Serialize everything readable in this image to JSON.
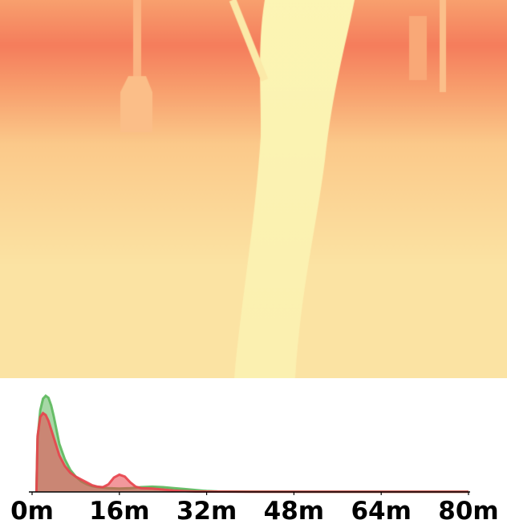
{
  "depth_map": {
    "colormap": [
      "#f57d5c",
      "#f8a06e",
      "#fbc98a",
      "#fbe3a3",
      "#fcf5b4"
    ],
    "colormap_note_colors": {
      "near": "#fcf5b4",
      "far": "#f57d5c"
    }
  },
  "chart_data": {
    "type": "area",
    "x_unit": "m",
    "xlim": [
      0,
      80
    ],
    "ylim": [
      0,
      1.0
    ],
    "x_ticks": [
      0,
      16,
      32,
      48,
      64,
      80
    ],
    "x_tick_labels": [
      "0m",
      "16m",
      "32m",
      "48m",
      "64m",
      "80m"
    ],
    "grid": false,
    "legend": "none",
    "series": [
      {
        "color": "#5cb85c",
        "x": [
          0.8,
          1.0,
          1.5,
          2.0,
          2.5,
          3.0,
          3.5,
          4.0,
          4.5,
          5.0,
          6.0,
          7.0,
          8.0,
          9.0,
          10.0,
          11.0,
          12.0,
          14.0,
          16.0,
          18.0,
          20.0,
          22.0,
          24.0,
          26.0,
          28.0,
          30.0,
          32.0,
          34.0,
          40.0,
          50.0,
          60.0,
          70.0,
          80.0
        ],
        "values": [
          0.0,
          0.55,
          0.85,
          0.97,
          1.0,
          0.98,
          0.9,
          0.78,
          0.64,
          0.5,
          0.34,
          0.23,
          0.16,
          0.11,
          0.08,
          0.06,
          0.05,
          0.04,
          0.035,
          0.04,
          0.05,
          0.055,
          0.05,
          0.04,
          0.03,
          0.02,
          0.01,
          0.005,
          0.003,
          0.002,
          0.002,
          0.002,
          0.002
        ]
      },
      {
        "color": "#e8434b",
        "x": [
          0.8,
          1.0,
          1.5,
          2.0,
          2.5,
          3.0,
          3.5,
          4.0,
          4.5,
          5.0,
          6.0,
          7.0,
          8.0,
          9.0,
          10.0,
          11.0,
          12.0,
          13.0,
          14.0,
          15.0,
          16.0,
          17.0,
          18.0,
          19.0,
          20.0,
          22.0,
          24.0,
          26.0,
          28.0,
          30.0,
          40.0,
          50.0,
          60.0,
          70.0,
          80.0
        ],
        "values": [
          0.0,
          0.58,
          0.78,
          0.82,
          0.8,
          0.74,
          0.65,
          0.56,
          0.47,
          0.38,
          0.27,
          0.2,
          0.16,
          0.13,
          0.1,
          0.07,
          0.055,
          0.05,
          0.08,
          0.15,
          0.18,
          0.16,
          0.1,
          0.055,
          0.04,
          0.035,
          0.025,
          0.015,
          0.008,
          0.004,
          0.002,
          0.002,
          0.002,
          0.002,
          0.002
        ]
      }
    ]
  }
}
